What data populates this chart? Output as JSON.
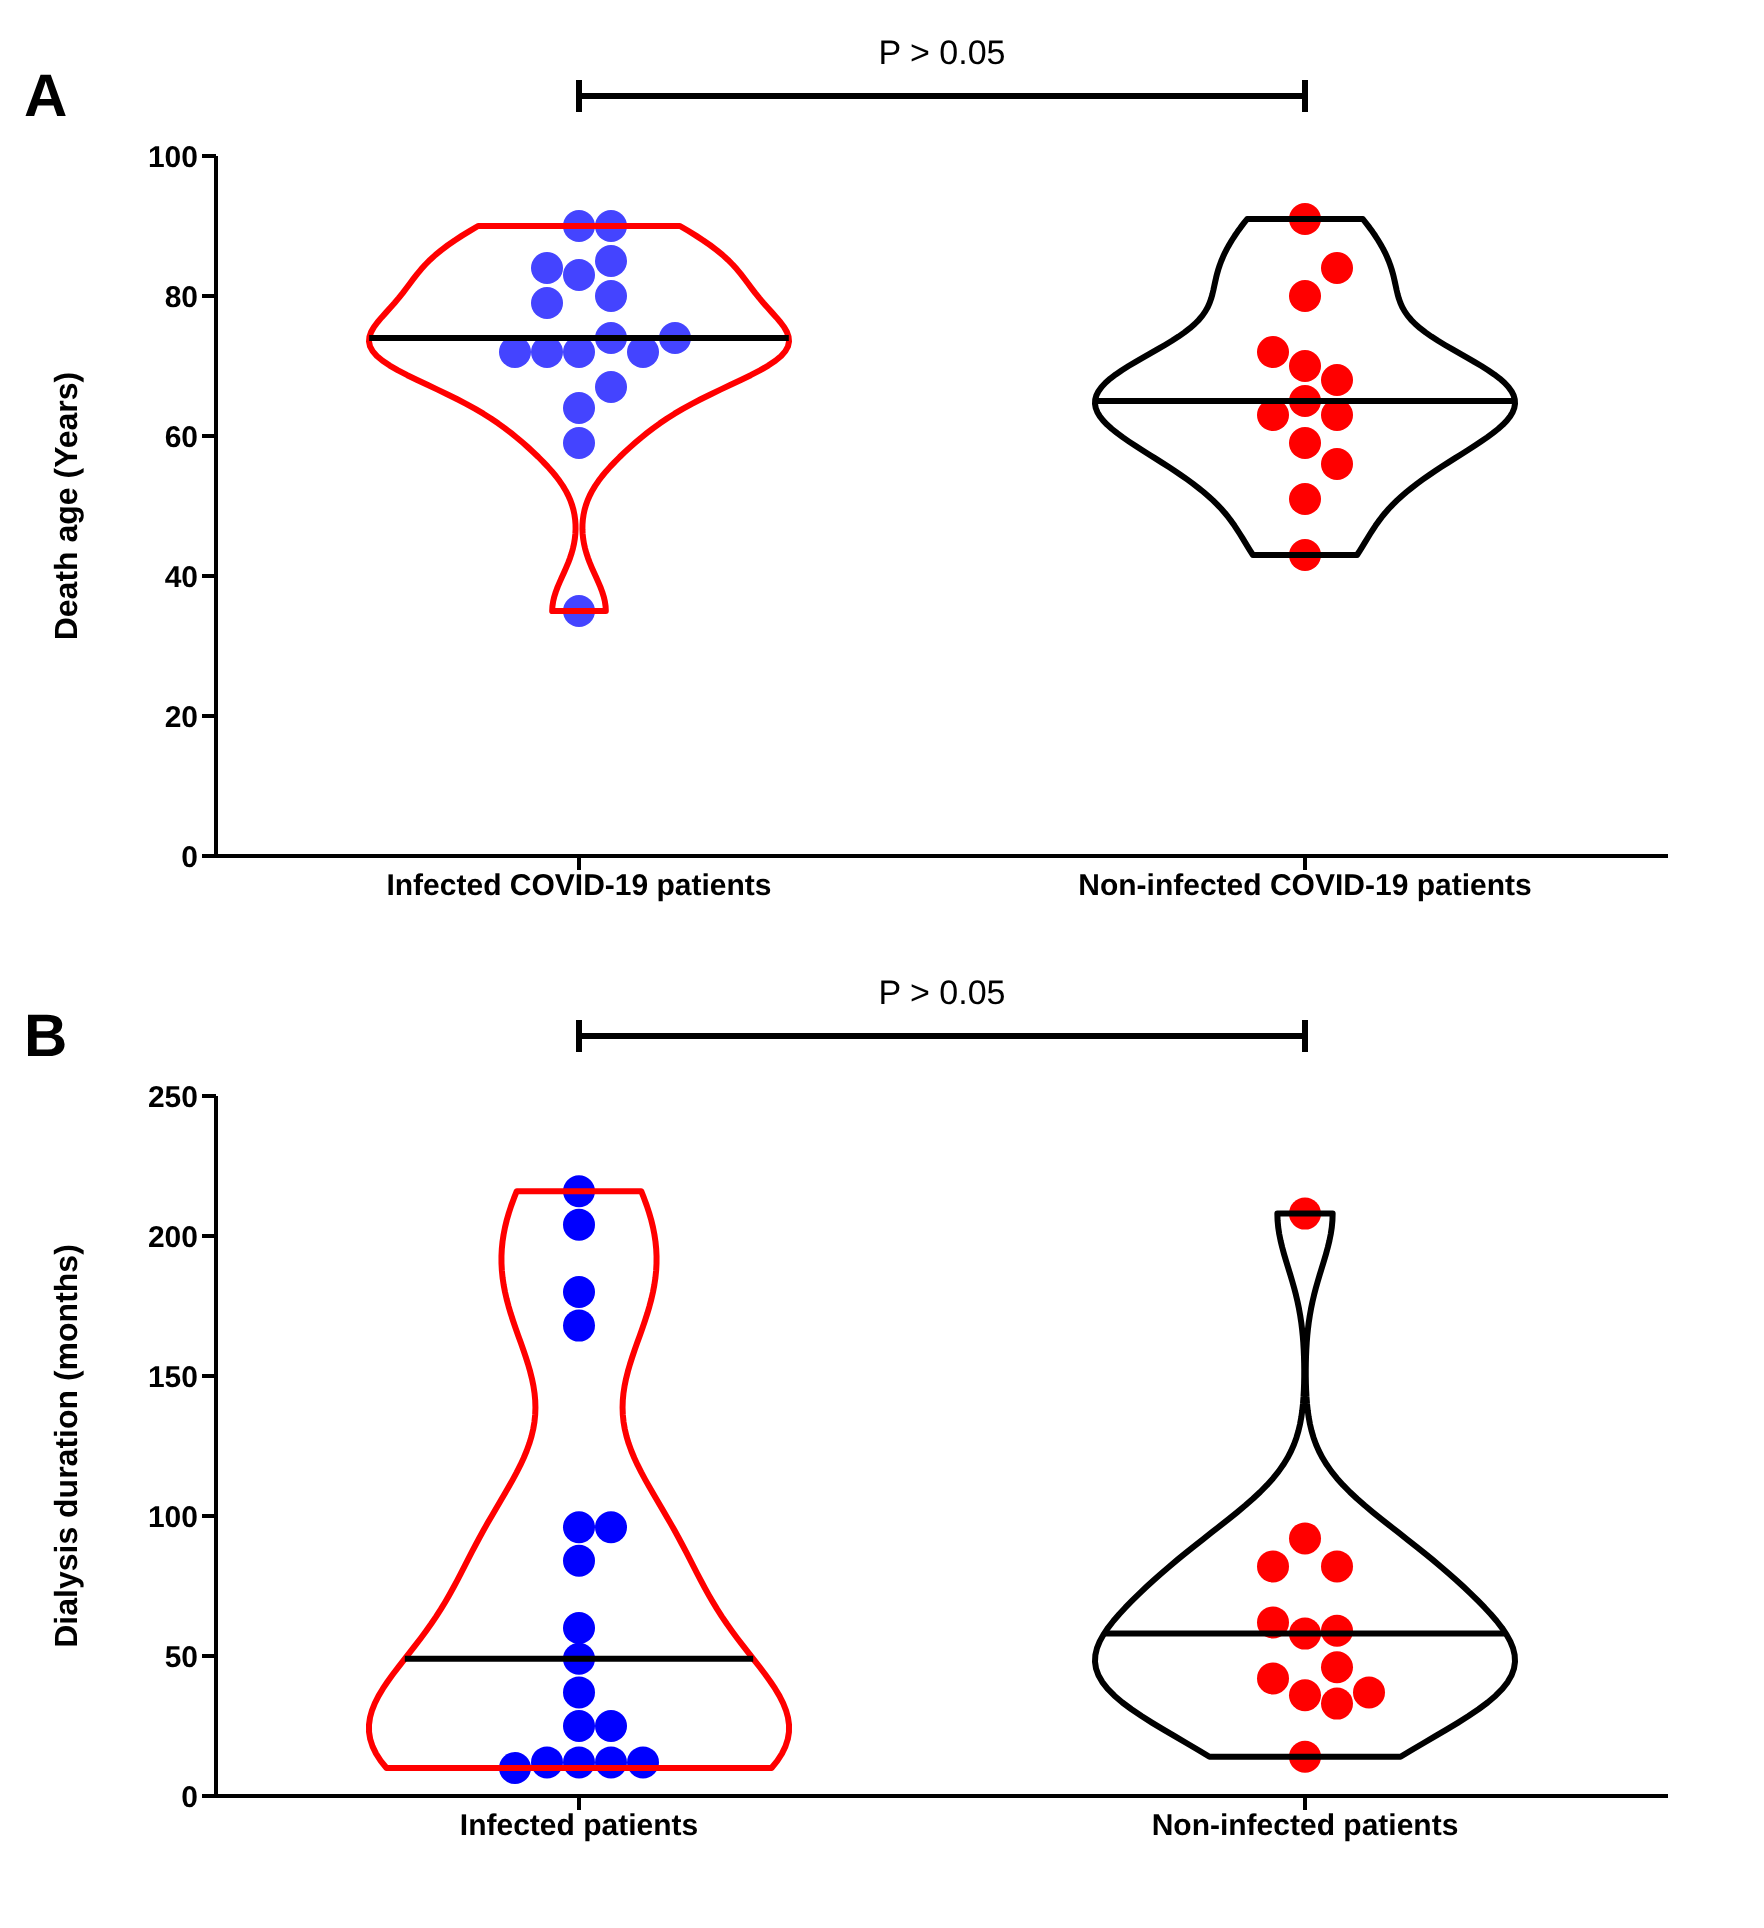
{
  "chart_data": [
    {
      "type": "scatter",
      "title": "A",
      "ylabel": "Death age (Years)",
      "categories": [
        "Infected COVID-19 patients",
        "Non-infected COVID-19 patients"
      ],
      "ylim": [
        0,
        100
      ],
      "yticks": [
        0,
        20,
        40,
        60,
        80,
        100
      ],
      "marker": "circle",
      "colors": [
        "#ff0000",
        "#000000"
      ],
      "annotations": [
        "P > 0.05"
      ],
      "series": [
        {
          "color": "#4444ff",
          "x": [
            "Infected COVID-19 patients",
            "Infected COVID-19 patients",
            "Infected COVID-19 patients",
            "Infected COVID-19 patients",
            "Infected COVID-19 patients",
            "Infected COVID-19 patients",
            "Infected COVID-19 patients",
            "Infected COVID-19 patients",
            "Infected COVID-19 patients",
            "Infected COVID-19 patients",
            "Infected COVID-19 patients",
            "Infected COVID-19 patients",
            "Infected COVID-19 patients",
            "Infected COVID-19 patients",
            "Infected COVID-19 patients",
            "Infected COVID-19 patients",
            "Infected COVID-19 patients"
          ],
          "values": [
            72,
            83,
            74,
            90,
            80,
            72,
            64,
            59,
            35,
            90,
            84,
            79,
            72,
            67,
            85,
            72,
            74
          ]
        },
        {
          "color": "#ff0000",
          "x": [
            "Non-infected COVID-19 patients",
            "Non-infected COVID-19 patients",
            "Non-infected COVID-19 patients",
            "Non-infected COVID-19 patients",
            "Non-infected COVID-19 patients",
            "Non-infected COVID-19 patients",
            "Non-infected COVID-19 patients",
            "Non-infected COVID-19 patients",
            "Non-infected COVID-19 patients",
            "Non-infected COVID-19 patients",
            "Non-infected COVID-19 patients",
            "Non-infected COVID-19 patients",
            "Non-infected COVID-19 patients"
          ],
          "values": [
            91,
            80,
            84,
            70,
            68,
            72,
            65,
            59,
            63,
            63,
            56,
            51,
            43
          ]
        }
      ]
    },
    {
      "type": "scatter",
      "title": "B",
      "ylabel": "Dialysis duration (months)",
      "categories": [
        "Infected patients",
        "Non-infected patients"
      ],
      "ylim": [
        0,
        250
      ],
      "yticks": [
        0,
        50,
        100,
        150,
        200,
        250
      ],
      "marker": "circle",
      "colors": [
        "#ff0000",
        "#000000"
      ],
      "annotations": [
        "P > 0.05"
      ],
      "series": [
        {
          "color": "#0000ff",
          "x": [
            "Infected patients",
            "Infected patients",
            "Infected patients",
            "Infected patients",
            "Infected patients",
            "Infected patients",
            "Infected patients",
            "Infected patients",
            "Infected patients",
            "Infected patients",
            "Infected patients",
            "Infected patients",
            "Infected patients",
            "Infected patients",
            "Infected patients",
            "Infected patients",
            "Infected patients"
          ],
          "values": [
            216,
            204,
            180,
            168,
            96,
            96,
            84,
            60,
            49,
            37,
            25,
            25,
            12,
            12,
            12,
            12,
            10
          ]
        },
        {
          "color": "#ff0000",
          "x": [
            "Non-infected patients",
            "Non-infected patients",
            "Non-infected patients",
            "Non-infected patients",
            "Non-infected patients",
            "Non-infected patients",
            "Non-infected patients",
            "Non-infected patients",
            "Non-infected patients",
            "Non-infected patients",
            "Non-infected patients",
            "Non-infected patients",
            "Non-infected patients"
          ],
          "values": [
            208,
            92,
            82,
            82,
            58,
            59,
            62,
            36,
            46,
            33,
            42,
            37,
            14
          ]
        }
      ]
    }
  ]
}
